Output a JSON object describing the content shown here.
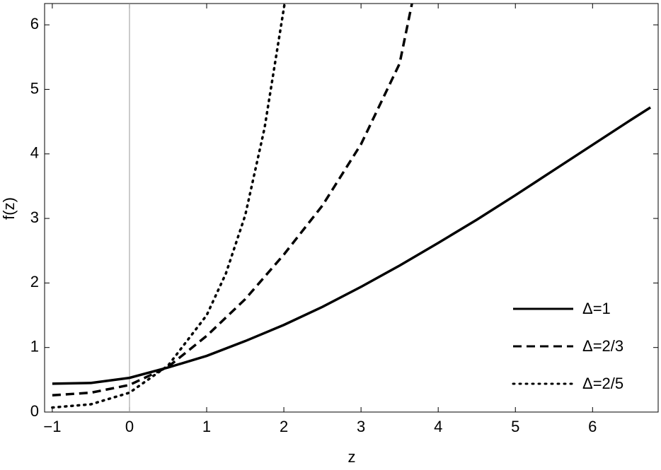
{
  "chart_data": {
    "type": "line",
    "xlabel": "z",
    "ylabel": "f(z)",
    "xlim": [
      -1.1,
      6.85
    ],
    "ylim": [
      0,
      6.33
    ],
    "xticks": [
      {
        "value": -1,
        "label": "−1"
      },
      0,
      1,
      2,
      3,
      4,
      5,
      6
    ],
    "yticks": [
      0,
      1,
      2,
      3,
      4,
      5,
      6
    ],
    "grid": false,
    "legend": "lower right",
    "series": [
      {
        "name": "Δ=1",
        "color": "#000000",
        "dash": "solid",
        "x": [
          -1,
          -0.5,
          0,
          0.5,
          1,
          1.5,
          2,
          2.5,
          3,
          3.5,
          4,
          4.5,
          5,
          5.5,
          6,
          6.5,
          6.75
        ],
        "values": [
          0.44,
          0.45,
          0.53,
          0.69,
          0.87,
          1.1,
          1.35,
          1.63,
          1.94,
          2.27,
          2.62,
          2.98,
          3.36,
          3.75,
          4.14,
          4.53,
          4.72
        ]
      },
      {
        "name": "Δ=2/3",
        "color": "#000000",
        "dash": "dashed",
        "x": [
          -1,
          -0.5,
          0,
          0.5,
          1,
          1.5,
          2,
          2.5,
          3,
          3.5,
          3.66
        ],
        "values": [
          0.26,
          0.3,
          0.42,
          0.7,
          1.18,
          1.75,
          2.44,
          3.2,
          4.15,
          5.4,
          6.33
        ]
      },
      {
        "name": "Δ=2/5",
        "color": "#000000",
        "dash": "dotted",
        "x": [
          -1,
          -0.5,
          0,
          0.5,
          1,
          1.25,
          1.5,
          1.75,
          2.01
        ],
        "values": [
          0.07,
          0.12,
          0.3,
          0.72,
          1.5,
          2.15,
          3.05,
          4.4,
          6.33
        ]
      }
    ]
  }
}
